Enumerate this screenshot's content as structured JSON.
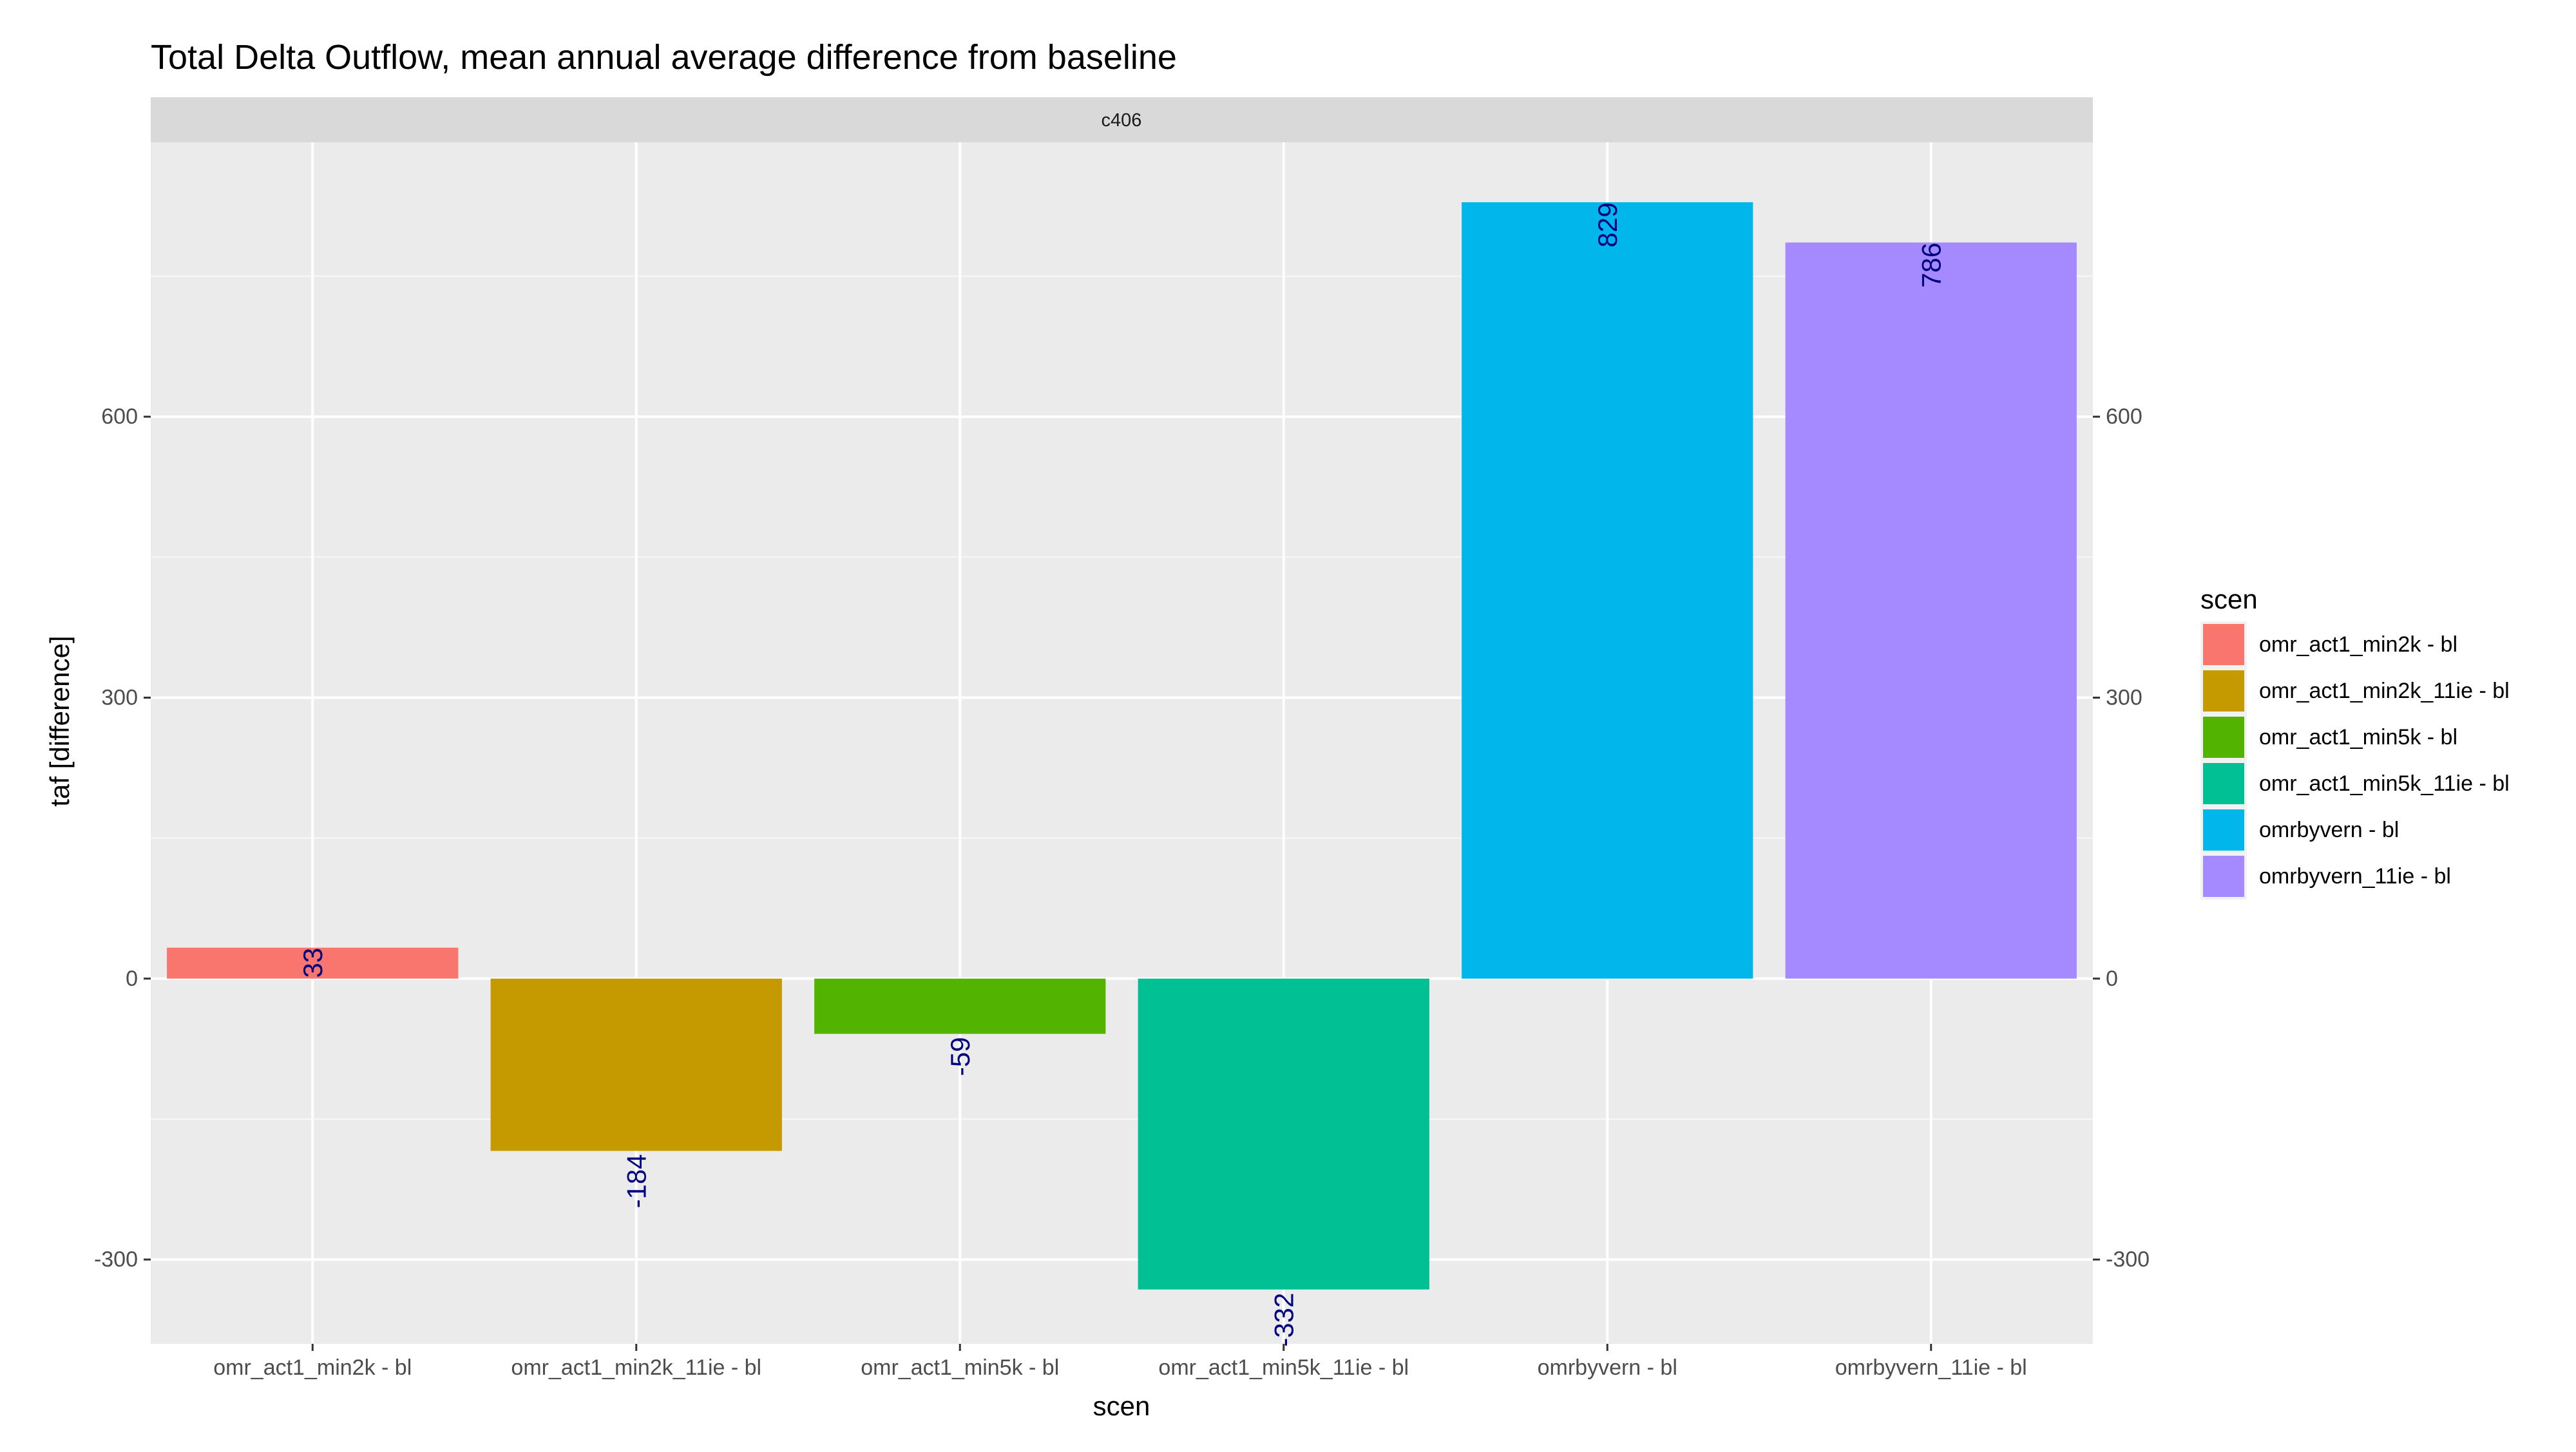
{
  "chart_data": {
    "type": "bar",
    "title": "Total Delta Outflow, mean annual average difference from baseline",
    "facet_label": "c406",
    "xlabel": "scen",
    "ylabel": "taf [difference]",
    "categories": [
      "omr_act1_min2k - bl",
      "omr_act1_min2k_11ie - bl",
      "omr_act1_min5k - bl",
      "omr_act1_min5k_11ie - bl",
      "omrbyvern - bl",
      "omrbyvern_11ie - bl"
    ],
    "values": [
      33,
      -184,
      -59,
      -332,
      829,
      786
    ],
    "data_labels": [
      "33",
      "-184",
      "-59",
      "-332",
      "829",
      "786"
    ],
    "colors": [
      "#F8766D",
      "#C49A00",
      "#53B400",
      "#00C094",
      "#00B6EB",
      "#A58AFF"
    ],
    "ylim": [
      -390,
      893
    ],
    "y_ticks": [
      -300,
      0,
      300,
      600
    ],
    "y_tick_labels": [
      "-300",
      "0",
      "300",
      "600"
    ],
    "y_axis_secondary": true,
    "grid": true,
    "legend": {
      "title": "scen",
      "position": "right"
    },
    "label_color": "#000080"
  }
}
